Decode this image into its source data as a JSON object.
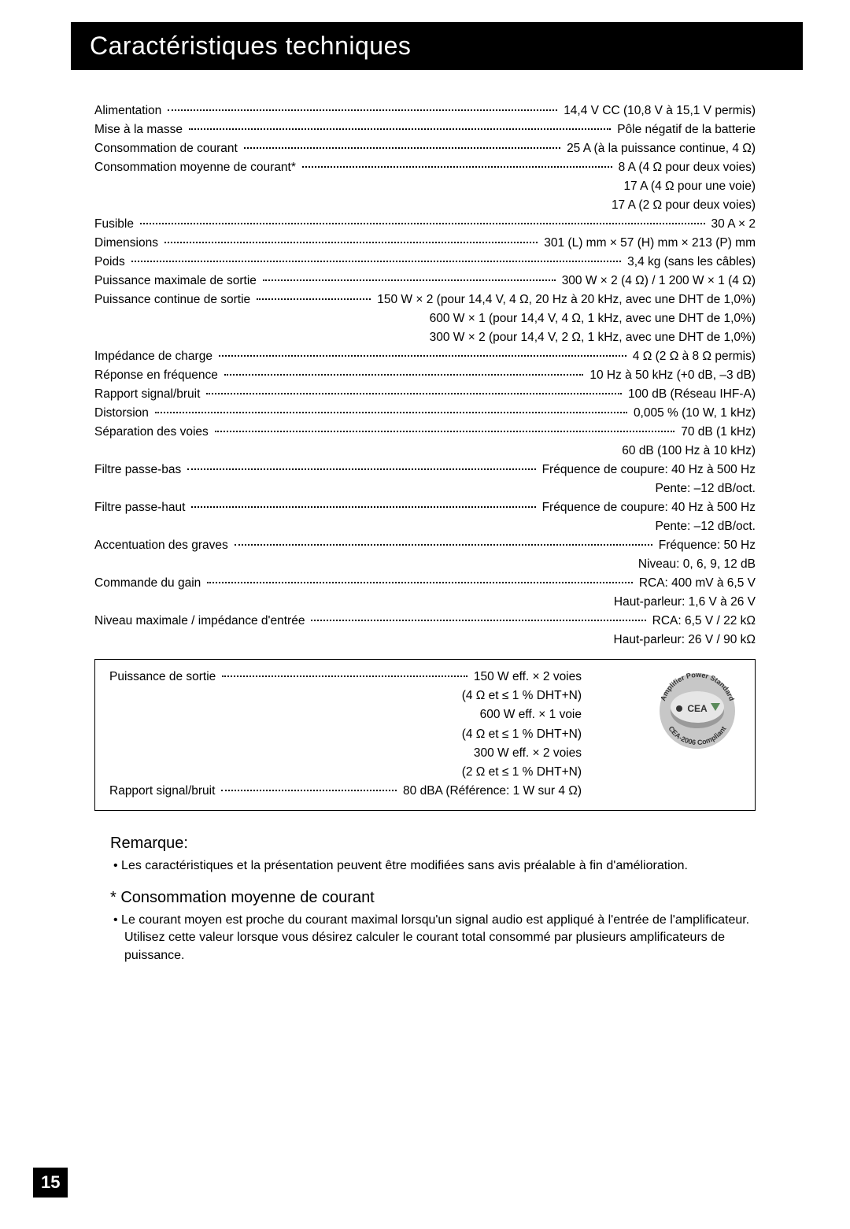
{
  "header": {
    "title": "Caractéristiques techniques"
  },
  "specs": [
    {
      "label": "Alimentation",
      "value": "14,4 V CC (10,8 V à 15,1 V permis)"
    },
    {
      "label": "Mise à la masse",
      "value": "Pôle négatif de la batterie"
    },
    {
      "label": "Consommation de courant",
      "value": "25 A (à la puissance continue, 4 Ω)"
    },
    {
      "label": "Consommation moyenne de courant*",
      "value": "8 A (4 Ω pour deux voies)"
    },
    {
      "sub": "17 A (4 Ω pour une voie)"
    },
    {
      "sub": "17 A (2 Ω pour deux voies)"
    },
    {
      "label": "Fusible",
      "value": "30 A × 2"
    },
    {
      "label": "Dimensions",
      "value": "301 (L) mm × 57 (H) mm × 213 (P) mm"
    },
    {
      "label": "Poids",
      "value": "3,4 kg (sans les câbles)"
    },
    {
      "label": "Puissance maximale de sortie",
      "value": "300 W × 2 (4 Ω) / 1 200 W × 1 (4 Ω)"
    },
    {
      "label": "Puissance continue de sortie",
      "value": "150 W × 2 (pour 14,4 V, 4 Ω, 20 Hz à 20 kHz, avec une DHT de 1,0%)"
    },
    {
      "sub": "600 W × 1 (pour 14,4 V, 4 Ω, 1 kHz, avec une DHT de 1,0%)"
    },
    {
      "sub": "300 W × 2 (pour 14,4 V, 2 Ω, 1 kHz, avec une DHT de 1,0%)"
    },
    {
      "label": "Impédance de charge",
      "value": "4 Ω (2 Ω à 8 Ω permis)"
    },
    {
      "label": "Réponse en fréquence",
      "value": "10 Hz à 50 kHz (+0 dB, –3 dB)"
    },
    {
      "label": "Rapport signal/bruit",
      "value": "100 dB (Réseau IHF-A)"
    },
    {
      "label": "Distorsion",
      "value": "0,005 % (10 W, 1 kHz)"
    },
    {
      "label": "Séparation des voies",
      "value": "70 dB (1 kHz)"
    },
    {
      "sub": "60 dB (100 Hz à 10 kHz)"
    },
    {
      "label": "Filtre passe-bas",
      "value": "Fréquence de coupure: 40 Hz à 500 Hz"
    },
    {
      "sub": "Pente: –12 dB/oct."
    },
    {
      "label": "Filtre passe-haut",
      "value": "Fréquence de coupure: 40 Hz à 500 Hz"
    },
    {
      "sub": "Pente: –12 dB/oct."
    },
    {
      "label": "Accentuation des graves",
      "value": "Fréquence: 50 Hz"
    },
    {
      "sub": "Niveau: 0, 6, 9, 12 dB"
    },
    {
      "label": "Commande du gain",
      "value": "RCA: 400 mV à 6,5 V"
    },
    {
      "sub": "Haut-parleur: 1,6 V à 26 V"
    },
    {
      "label": "Niveau maximale / impédance d'entrée",
      "value": "RCA: 6,5 V / 22 kΩ"
    },
    {
      "sub": "Haut-parleur: 26 V / 90 kΩ"
    }
  ],
  "box": {
    "rows": [
      {
        "label": "Puissance de sortie",
        "value": "150 W eff. × 2 voies"
      },
      {
        "sub": "(4 Ω et ≤ 1 % DHT+N)"
      },
      {
        "sub": "600 W eff. × 1 voie"
      },
      {
        "sub": "(4 Ω et ≤ 1 % DHT+N)"
      },
      {
        "sub": "300 W eff. × 2 voies"
      },
      {
        "sub": "(2 Ω et ≤ 1 % DHT+N)"
      },
      {
        "label": "Rapport signal/bruit",
        "value": "80 dBA (Référence: 1 W sur 4 Ω)"
      }
    ],
    "logo": {
      "outer_text_top": "Amplifier Power Standard",
      "outer_text_bottom": "CEA-2006 Compliant",
      "inner_text": "CEA"
    }
  },
  "notes": {
    "remark_heading": "Remarque:",
    "remark_body": "•  Les caractéristiques et la présentation peuvent être modifiées sans avis préalable à fin d'amélioration.",
    "consumption_heading": "* Consommation moyenne de courant",
    "consumption_body": "•  Le courant moyen est proche du courant maximal lorsqu'un signal audio est appliqué à l'entrée de l'amplificateur. Utilisez cette valeur lorsque vous désirez calculer le courant total consommé par plusieurs amplificateurs de puissance."
  },
  "page_number": "15",
  "colors": {
    "header_bg": "#000000",
    "header_fg": "#ffffff",
    "text": "#000000",
    "page_bg": "#ffffff"
  }
}
